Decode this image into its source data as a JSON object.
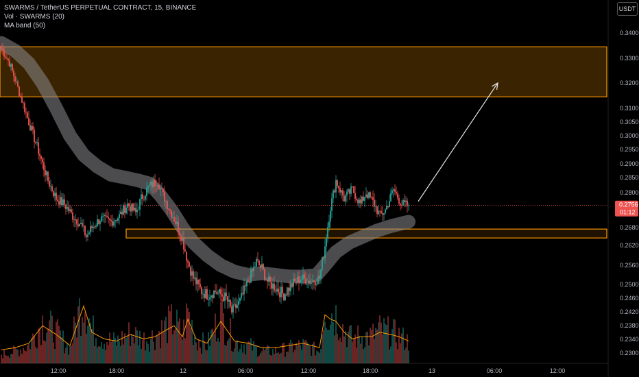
{
  "legend": {
    "title": "SWARMS / TetherUS PERPETUAL CONTRACT, 15, BINANCE",
    "volume": "Vol · SWARMS (20)",
    "ma_band": "MA band (50)"
  },
  "currency": "USDT",
  "price_tag": {
    "price": "0.2756",
    "countdown": "01:12"
  },
  "colors": {
    "up": "#26a69a",
    "down": "#ef5350",
    "zone_fill": "#3a2300",
    "zone_stroke": "#ff9800",
    "band": "#8a8a8f",
    "price_line": "#ef5350",
    "arrow": "#e8e8e8"
  },
  "chart_data": {
    "type": "candlestick",
    "title": "SWARMS / TetherUS PERPETUAL CONTRACT, 15, BINANCE",
    "y_ticks": [
      "0.3400",
      "0.3300",
      "0.3200",
      "0.3100",
      "0.3050",
      "0.3000",
      "0.2950",
      "0.2900",
      "0.2850",
      "0.2800",
      "0.2680",
      "0.2620",
      "0.2560",
      "0.2500",
      "0.2460",
      "0.2420",
      "0.2380",
      "0.2340",
      "0.2300"
    ],
    "x_ticks": [
      "12:00",
      "18:00",
      "12",
      "06:00",
      "12:00",
      "18:00",
      "13",
      "06:00",
      "12:00"
    ],
    "last_price": 0.2756,
    "close_path": [
      [
        0,
        0.334
      ],
      [
        6,
        0.328
      ],
      [
        12,
        0.318
      ],
      [
        20,
        0.305
      ],
      [
        28,
        0.293
      ],
      [
        34,
        0.284
      ],
      [
        40,
        0.278
      ],
      [
        46,
        0.276
      ],
      [
        52,
        0.272
      ],
      [
        58,
        0.269
      ],
      [
        62,
        0.265
      ],
      [
        66,
        0.268
      ],
      [
        72,
        0.271
      ],
      [
        80,
        0.27
      ],
      [
        86,
        0.272
      ],
      [
        92,
        0.276
      ],
      [
        98,
        0.273
      ],
      [
        102,
        0.278
      ],
      [
        108,
        0.282
      ],
      [
        114,
        0.284
      ],
      [
        118,
        0.279
      ],
      [
        122,
        0.275
      ],
      [
        128,
        0.269
      ],
      [
        132,
        0.264
      ],
      [
        136,
        0.257
      ],
      [
        140,
        0.252
      ],
      [
        146,
        0.248
      ],
      [
        150,
        0.247
      ],
      [
        156,
        0.248
      ],
      [
        160,
        0.247
      ],
      [
        164,
        0.246
      ],
      [
        168,
        0.242
      ],
      [
        174,
        0.245
      ],
      [
        178,
        0.249
      ],
      [
        182,
        0.253
      ],
      [
        186,
        0.257
      ],
      [
        190,
        0.255
      ],
      [
        194,
        0.251
      ],
      [
        200,
        0.249
      ],
      [
        206,
        0.247
      ],
      [
        212,
        0.25
      ],
      [
        218,
        0.252
      ],
      [
        226,
        0.251
      ],
      [
        232,
        0.252
      ],
      [
        236,
        0.262
      ],
      [
        240,
        0.275
      ],
      [
        244,
        0.284
      ],
      [
        250,
        0.278
      ],
      [
        256,
        0.281
      ],
      [
        262,
        0.276
      ],
      [
        266,
        0.28
      ],
      [
        272,
        0.276
      ],
      [
        276,
        0.272
      ],
      [
        280,
        0.274
      ],
      [
        286,
        0.281
      ],
      [
        292,
        0.276
      ],
      [
        297,
        0.2756
      ]
    ],
    "ma_band_path": [
      [
        0,
        0.336
      ],
      [
        10,
        0.333
      ],
      [
        20,
        0.328
      ],
      [
        30,
        0.32
      ],
      [
        40,
        0.31
      ],
      [
        50,
        0.3
      ],
      [
        60,
        0.293
      ],
      [
        70,
        0.289
      ],
      [
        80,
        0.286
      ],
      [
        90,
        0.285
      ],
      [
        100,
        0.284
      ],
      [
        108,
        0.283
      ],
      [
        116,
        0.279
      ],
      [
        124,
        0.274
      ],
      [
        132,
        0.268
      ],
      [
        140,
        0.263
      ],
      [
        150,
        0.259
      ],
      [
        160,
        0.256
      ],
      [
        170,
        0.254
      ],
      [
        180,
        0.253
      ],
      [
        190,
        0.2535
      ],
      [
        200,
        0.253
      ],
      [
        210,
        0.2525
      ],
      [
        220,
        0.2525
      ],
      [
        230,
        0.253
      ],
      [
        236,
        0.256
      ],
      [
        244,
        0.26
      ],
      [
        254,
        0.263
      ],
      [
        264,
        0.265
      ],
      [
        274,
        0.267
      ],
      [
        284,
        0.2685
      ],
      [
        297,
        0.27
      ]
    ],
    "zones": [
      {
        "name": "supply-zone",
        "from": 0.3145,
        "to": 0.3345
      },
      {
        "name": "demand-zone",
        "from": 0.2645,
        "to": 0.2675
      }
    ],
    "projection_arrow": {
      "from": [
        304,
        0.277
      ],
      "to": [
        362,
        0.32
      ]
    },
    "volume": [
      [
        0,
        3
      ],
      [
        10,
        4
      ],
      [
        20,
        6
      ],
      [
        30,
        14
      ],
      [
        40,
        10
      ],
      [
        50,
        5
      ],
      [
        60,
        23
      ],
      [
        66,
        11
      ],
      [
        75,
        8
      ],
      [
        84,
        7
      ],
      [
        94,
        10
      ],
      [
        104,
        8
      ],
      [
        112,
        9
      ],
      [
        120,
        12
      ],
      [
        126,
        14
      ],
      [
        132,
        9
      ],
      [
        136,
        17
      ],
      [
        142,
        8
      ],
      [
        150,
        6
      ],
      [
        160,
        16
      ],
      [
        170,
        7
      ],
      [
        180,
        6
      ],
      [
        190,
        4
      ],
      [
        200,
        4
      ],
      [
        210,
        5
      ],
      [
        220,
        6
      ],
      [
        232,
        4
      ],
      [
        236,
        19
      ],
      [
        240,
        17
      ],
      [
        244,
        16
      ],
      [
        250,
        11
      ],
      [
        256,
        8
      ],
      [
        262,
        9
      ],
      [
        270,
        9
      ],
      [
        276,
        11
      ],
      [
        284,
        10
      ],
      [
        290,
        9
      ],
      [
        297,
        7
      ]
    ]
  }
}
